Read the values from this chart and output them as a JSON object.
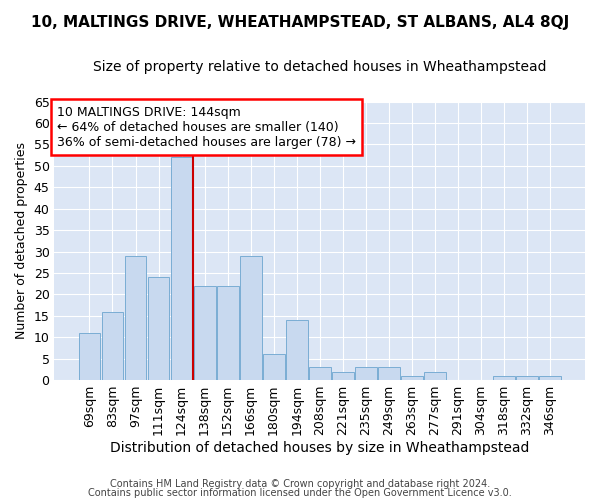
{
  "title1": "10, MALTINGS DRIVE, WHEATHAMPSTEAD, ST ALBANS, AL4 8QJ",
  "title2": "Size of property relative to detached houses in Wheathampstead",
  "xlabel": "Distribution of detached houses by size in Wheathampstead",
  "ylabel": "Number of detached properties",
  "footnote1": "Contains HM Land Registry data © Crown copyright and database right 2024.",
  "footnote2": "Contains public sector information licensed under the Open Government Licence v3.0.",
  "categories": [
    "69sqm",
    "83sqm",
    "97sqm",
    "111sqm",
    "124sqm",
    "138sqm",
    "152sqm",
    "166sqm",
    "180sqm",
    "194sqm",
    "208sqm",
    "221sqm",
    "235sqm",
    "249sqm",
    "263sqm",
    "277sqm",
    "291sqm",
    "304sqm",
    "318sqm",
    "332sqm",
    "346sqm"
  ],
  "values": [
    11,
    16,
    29,
    24,
    52,
    22,
    22,
    29,
    6,
    14,
    3,
    2,
    3,
    3,
    1,
    2,
    0,
    0,
    1,
    1,
    1
  ],
  "bar_color": "#c8d9ef",
  "bar_edge_color": "#7aadd4",
  "vline_color": "#cc0000",
  "annotation_line1": "10 MALTINGS DRIVE: 144sqm",
  "annotation_line2": "← 64% of detached houses are smaller (140)",
  "annotation_line3": "36% of semi-detached houses are larger (78) →",
  "bg_color": "#ffffff",
  "plot_bg_color": "#dce6f5",
  "grid_color": "#ffffff",
  "ylim": [
    0,
    65
  ],
  "yticks": [
    0,
    5,
    10,
    15,
    20,
    25,
    30,
    35,
    40,
    45,
    50,
    55,
    60,
    65
  ],
  "title1_fontsize": 11,
  "title2_fontsize": 10,
  "xlabel_fontsize": 10,
  "ylabel_fontsize": 9,
  "tick_fontsize": 9,
  "annot_fontsize": 9,
  "footnote_fontsize": 7,
  "vline_x": 4.5
}
